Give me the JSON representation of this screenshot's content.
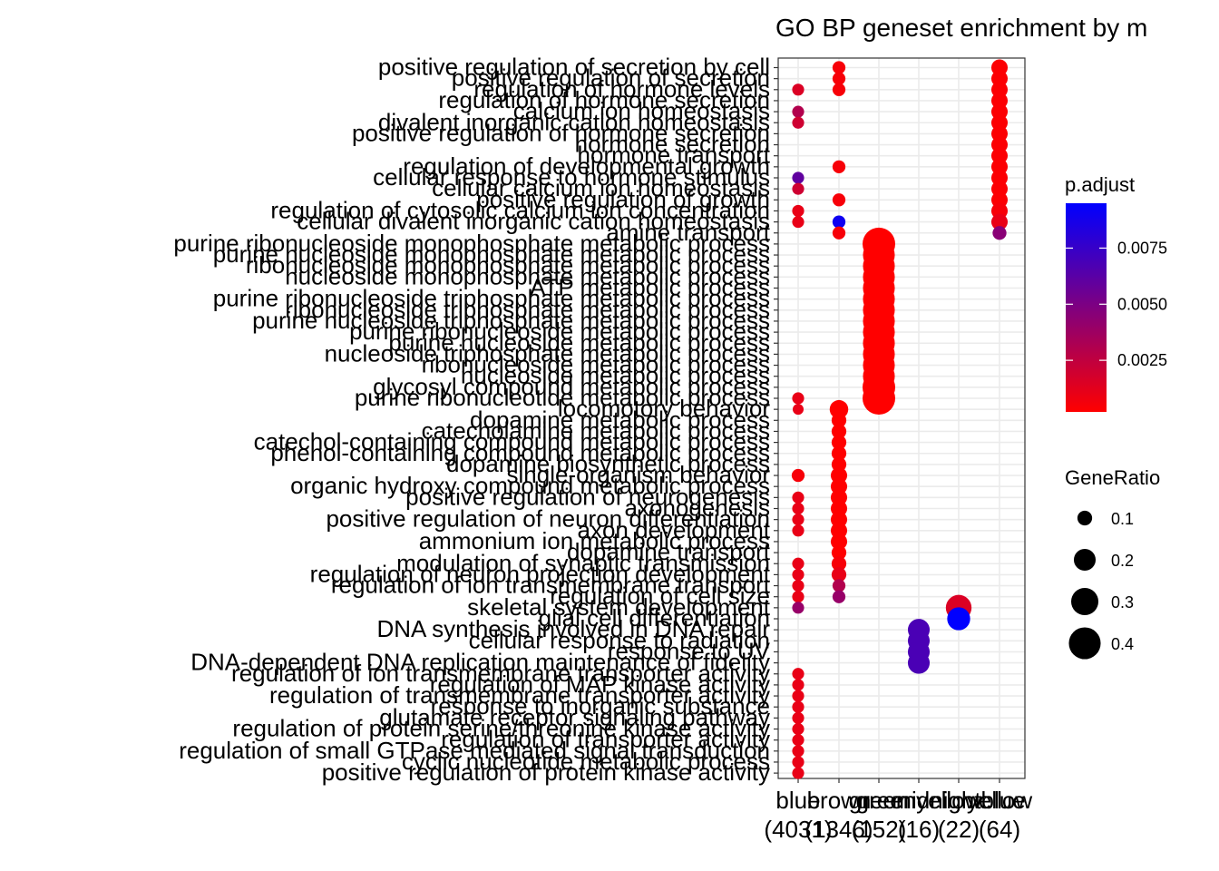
{
  "chart_data": {
    "type": "scatter",
    "title": "GO BP geneset enrichment by m",
    "xlabel": "",
    "ylabel": "",
    "grid": true,
    "categories": [
      {
        "name": "blue",
        "count": "(4031)"
      },
      {
        "name": "brown",
        "count": "(1346)"
      },
      {
        "name": "green",
        "count": "(152)"
      },
      {
        "name": "greenyellow",
        "count": "(16)"
      },
      {
        "name": "midnightblue",
        "count": "(22)"
      },
      {
        "name": "yellow",
        "count": "(64)"
      }
    ],
    "terms": [
      "positive regulation of secretion by cell",
      "positive regulation of secretion",
      "regulation of hormone levels",
      "regulation of hormone secretion",
      "calcium ion homeostasis",
      "divalent inorganic cation homeostasis",
      "positive regulation of hormone secretion",
      "hormone secretion",
      "hormone transport",
      "regulation of developmental growth",
      "cellular response to hormone stimulus",
      "cellular calcium ion homeostasis",
      "positive regulation of growth",
      "regulation of cytosolic calcium ion concentration",
      "cellular divalent inorganic cation homeostasis",
      "amine transport",
      "purine ribonucleoside monophosphate metabolic process",
      "purine nucleoside monophosphate metabolic process",
      "ribonucleoside monophosphate metabolic process",
      "nucleoside monophosphate metabolic process",
      "ATP metabolic process",
      "purine ribonucleoside triphosphate metabolic process",
      "ribonucleoside triphosphate metabolic process",
      "purine nucleoside triphosphate metabolic process",
      "purine ribonucleoside metabolic process",
      "purine nucleoside metabolic process",
      "nucleoside triphosphate metabolic process",
      "ribonucleoside metabolic process",
      "nucleoside metabolic process",
      "glycosyl compound metabolic process",
      "purine ribonucleotide metabolic process",
      "locomotory behavior",
      "dopamine metabolic process",
      "catecholamine metabolic process",
      "catechol-containing compound metabolic process",
      "phenol-containing compound metabolic process",
      "dopamine biosynthetic process",
      "single-organism behavior",
      "organic hydroxy compound metabolic process",
      "positive regulation of neurogenesis",
      "axonogenesis",
      "positive regulation of neuron differentiation",
      "axon development",
      "ammonium ion metabolic process",
      "dopamine transport",
      "modulation of synaptic transmission",
      "regulation of neuron projection development",
      "regulation of ion transmembrane transport",
      "regulation of cell size",
      "skeletal system development",
      "glial cell differentiation",
      "DNA synthesis involved in DNA repair",
      "cellular response to radiation",
      "response to UV",
      "DNA-dependent DNA replication maintenance of fidelity",
      "regulation of ion transmembrane transporter activity",
      "regulation of MAP kinase activity",
      "regulation of transmembrane transporter activity",
      "response to inorganic substance",
      "glutamate receptor signaling pathway",
      "regulation of protein serine/threonine kinase activity",
      "regulation of transporter activity",
      "regulation of small GTPase mediated signal transduction",
      "cyclic nucleotide metabolic process",
      "positive regulation of protein kinase activity"
    ],
    "points": [
      {
        "x": "blue",
        "y": 2,
        "gene_ratio": 0.07,
        "p_adjust": 0.0015
      },
      {
        "x": "blue",
        "y": 4,
        "gene_ratio": 0.07,
        "p_adjust": 0.003
      },
      {
        "x": "blue",
        "y": 5,
        "gene_ratio": 0.07,
        "p_adjust": 0.002
      },
      {
        "x": "blue",
        "y": 10,
        "gene_ratio": 0.07,
        "p_adjust": 0.006
      },
      {
        "x": "blue",
        "y": 11,
        "gene_ratio": 0.07,
        "p_adjust": 0.002
      },
      {
        "x": "blue",
        "y": 13,
        "gene_ratio": 0.07,
        "p_adjust": 0.001
      },
      {
        "x": "blue",
        "y": 14,
        "gene_ratio": 0.07,
        "p_adjust": 0.001
      },
      {
        "x": "blue",
        "y": 30,
        "gene_ratio": 0.07,
        "p_adjust": 0.001
      },
      {
        "x": "blue",
        "y": 31,
        "gene_ratio": 0.06,
        "p_adjust": 0.001
      },
      {
        "x": "blue",
        "y": 37,
        "gene_ratio": 0.08,
        "p_adjust": 0.0005
      },
      {
        "x": "blue",
        "y": 39,
        "gene_ratio": 0.07,
        "p_adjust": 0.001
      },
      {
        "x": "blue",
        "y": 40,
        "gene_ratio": 0.07,
        "p_adjust": 0.001
      },
      {
        "x": "blue",
        "y": 41,
        "gene_ratio": 0.07,
        "p_adjust": 0.001
      },
      {
        "x": "blue",
        "y": 42,
        "gene_ratio": 0.07,
        "p_adjust": 0.001
      },
      {
        "x": "blue",
        "y": 45,
        "gene_ratio": 0.07,
        "p_adjust": 0.001
      },
      {
        "x": "blue",
        "y": 46,
        "gene_ratio": 0.07,
        "p_adjust": 0.001
      },
      {
        "x": "blue",
        "y": 47,
        "gene_ratio": 0.07,
        "p_adjust": 0.001
      },
      {
        "x": "blue",
        "y": 48,
        "gene_ratio": 0.07,
        "p_adjust": 0.001
      },
      {
        "x": "blue",
        "y": 49,
        "gene_ratio": 0.07,
        "p_adjust": 0.004
      },
      {
        "x": "blue",
        "y": 55,
        "gene_ratio": 0.07,
        "p_adjust": 0.001
      },
      {
        "x": "blue",
        "y": 56,
        "gene_ratio": 0.07,
        "p_adjust": 0.001
      },
      {
        "x": "blue",
        "y": 57,
        "gene_ratio": 0.07,
        "p_adjust": 0.001
      },
      {
        "x": "blue",
        "y": 58,
        "gene_ratio": 0.07,
        "p_adjust": 0.001
      },
      {
        "x": "blue",
        "y": 59,
        "gene_ratio": 0.07,
        "p_adjust": 0.001
      },
      {
        "x": "blue",
        "y": 60,
        "gene_ratio": 0.07,
        "p_adjust": 0.001
      },
      {
        "x": "blue",
        "y": 61,
        "gene_ratio": 0.07,
        "p_adjust": 0.001
      },
      {
        "x": "blue",
        "y": 62,
        "gene_ratio": 0.07,
        "p_adjust": 0.001
      },
      {
        "x": "blue",
        "y": 63,
        "gene_ratio": 0.07,
        "p_adjust": 0.001
      },
      {
        "x": "blue",
        "y": 64,
        "gene_ratio": 0.07,
        "p_adjust": 0.001
      },
      {
        "x": "brown",
        "y": 0,
        "gene_ratio": 0.08,
        "p_adjust": 0.0005
      },
      {
        "x": "brown",
        "y": 1,
        "gene_ratio": 0.08,
        "p_adjust": 0.0005
      },
      {
        "x": "brown",
        "y": 2,
        "gene_ratio": 0.08,
        "p_adjust": 0.0005
      },
      {
        "x": "brown",
        "y": 9,
        "gene_ratio": 0.08,
        "p_adjust": 0.0005
      },
      {
        "x": "brown",
        "y": 12,
        "gene_ratio": 0.08,
        "p_adjust": 0.0005
      },
      {
        "x": "brown",
        "y": 14,
        "gene_ratio": 0.08,
        "p_adjust": 0.009
      },
      {
        "x": "brown",
        "y": 15,
        "gene_ratio": 0.08,
        "p_adjust": 0.0005
      },
      {
        "x": "brown",
        "y": 31,
        "gene_ratio": 0.15,
        "p_adjust": 0.0002
      },
      {
        "x": "brown",
        "y": 32,
        "gene_ratio": 0.1,
        "p_adjust": 0.0002
      },
      {
        "x": "brown",
        "y": 33,
        "gene_ratio": 0.1,
        "p_adjust": 0.0002
      },
      {
        "x": "brown",
        "y": 34,
        "gene_ratio": 0.1,
        "p_adjust": 0.0002
      },
      {
        "x": "brown",
        "y": 35,
        "gene_ratio": 0.1,
        "p_adjust": 0.0002
      },
      {
        "x": "brown",
        "y": 36,
        "gene_ratio": 0.1,
        "p_adjust": 0.0002
      },
      {
        "x": "brown",
        "y": 37,
        "gene_ratio": 0.12,
        "p_adjust": 0.0002
      },
      {
        "x": "brown",
        "y": 38,
        "gene_ratio": 0.12,
        "p_adjust": 0.0002
      },
      {
        "x": "brown",
        "y": 39,
        "gene_ratio": 0.12,
        "p_adjust": 0.0002
      },
      {
        "x": "brown",
        "y": 40,
        "gene_ratio": 0.12,
        "p_adjust": 0.0002
      },
      {
        "x": "brown",
        "y": 41,
        "gene_ratio": 0.12,
        "p_adjust": 0.0002
      },
      {
        "x": "brown",
        "y": 42,
        "gene_ratio": 0.12,
        "p_adjust": 0.0002
      },
      {
        "x": "brown",
        "y": 43,
        "gene_ratio": 0.12,
        "p_adjust": 0.0002
      },
      {
        "x": "brown",
        "y": 44,
        "gene_ratio": 0.1,
        "p_adjust": 0.0002
      },
      {
        "x": "brown",
        "y": 45,
        "gene_ratio": 0.1,
        "p_adjust": 0.0005
      },
      {
        "x": "brown",
        "y": 46,
        "gene_ratio": 0.1,
        "p_adjust": 0.001
      },
      {
        "x": "brown",
        "y": 47,
        "gene_ratio": 0.08,
        "p_adjust": 0.003
      },
      {
        "x": "brown",
        "y": 48,
        "gene_ratio": 0.08,
        "p_adjust": 0.004
      },
      {
        "x": "green",
        "y": 16,
        "gene_ratio": 0.42,
        "p_adjust": 0.0002
      },
      {
        "x": "green",
        "y": 17,
        "gene_ratio": 0.4,
        "p_adjust": 0.0002
      },
      {
        "x": "green",
        "y": 18,
        "gene_ratio": 0.4,
        "p_adjust": 0.0002
      },
      {
        "x": "green",
        "y": 19,
        "gene_ratio": 0.4,
        "p_adjust": 0.0002
      },
      {
        "x": "green",
        "y": 20,
        "gene_ratio": 0.4,
        "p_adjust": 0.0002
      },
      {
        "x": "green",
        "y": 21,
        "gene_ratio": 0.4,
        "p_adjust": 0.0002
      },
      {
        "x": "green",
        "y": 22,
        "gene_ratio": 0.4,
        "p_adjust": 0.0002
      },
      {
        "x": "green",
        "y": 23,
        "gene_ratio": 0.4,
        "p_adjust": 0.0002
      },
      {
        "x": "green",
        "y": 24,
        "gene_ratio": 0.4,
        "p_adjust": 0.0002
      },
      {
        "x": "green",
        "y": 25,
        "gene_ratio": 0.4,
        "p_adjust": 0.0002
      },
      {
        "x": "green",
        "y": 26,
        "gene_ratio": 0.4,
        "p_adjust": 0.0002
      },
      {
        "x": "green",
        "y": 27,
        "gene_ratio": 0.4,
        "p_adjust": 0.0002
      },
      {
        "x": "green",
        "y": 28,
        "gene_ratio": 0.4,
        "p_adjust": 0.0002
      },
      {
        "x": "green",
        "y": 29,
        "gene_ratio": 0.42,
        "p_adjust": 0.0002
      },
      {
        "x": "green",
        "y": 30,
        "gene_ratio": 0.42,
        "p_adjust": 0.0002
      },
      {
        "x": "greenyellow",
        "y": 51,
        "gene_ratio": 0.2,
        "p_adjust": 0.0068
      },
      {
        "x": "greenyellow",
        "y": 52,
        "gene_ratio": 0.2,
        "p_adjust": 0.0068
      },
      {
        "x": "greenyellow",
        "y": 53,
        "gene_ratio": 0.2,
        "p_adjust": 0.0068
      },
      {
        "x": "greenyellow",
        "y": 54,
        "gene_ratio": 0.2,
        "p_adjust": 0.0068
      },
      {
        "x": "midnightblue",
        "y": 49,
        "gene_ratio": 0.27,
        "p_adjust": 0.0015
      },
      {
        "x": "midnightblue",
        "y": 50,
        "gene_ratio": 0.22,
        "p_adjust": 0.0095
      },
      {
        "x": "yellow",
        "y": 0,
        "gene_ratio": 0.12,
        "p_adjust": 0.0003
      },
      {
        "x": "yellow",
        "y": 1,
        "gene_ratio": 0.12,
        "p_adjust": 0.0003
      },
      {
        "x": "yellow",
        "y": 2,
        "gene_ratio": 0.12,
        "p_adjust": 0.0003
      },
      {
        "x": "yellow",
        "y": 3,
        "gene_ratio": 0.12,
        "p_adjust": 0.0003
      },
      {
        "x": "yellow",
        "y": 4,
        "gene_ratio": 0.12,
        "p_adjust": 0.0003
      },
      {
        "x": "yellow",
        "y": 5,
        "gene_ratio": 0.12,
        "p_adjust": 0.0003
      },
      {
        "x": "yellow",
        "y": 6,
        "gene_ratio": 0.12,
        "p_adjust": 0.0003
      },
      {
        "x": "yellow",
        "y": 7,
        "gene_ratio": 0.12,
        "p_adjust": 0.0003
      },
      {
        "x": "yellow",
        "y": 8,
        "gene_ratio": 0.12,
        "p_adjust": 0.0003
      },
      {
        "x": "yellow",
        "y": 9,
        "gene_ratio": 0.12,
        "p_adjust": 0.0003
      },
      {
        "x": "yellow",
        "y": 10,
        "gene_ratio": 0.12,
        "p_adjust": 0.0003
      },
      {
        "x": "yellow",
        "y": 11,
        "gene_ratio": 0.12,
        "p_adjust": 0.0003
      },
      {
        "x": "yellow",
        "y": 12,
        "gene_ratio": 0.12,
        "p_adjust": 0.0003
      },
      {
        "x": "yellow",
        "y": 13,
        "gene_ratio": 0.12,
        "p_adjust": 0.0005
      },
      {
        "x": "yellow",
        "y": 14,
        "gene_ratio": 0.12,
        "p_adjust": 0.001
      },
      {
        "x": "yellow",
        "y": 15,
        "gene_ratio": 0.09,
        "p_adjust": 0.0045
      }
    ],
    "color_legend": {
      "title": "p.adjust",
      "ticks": [
        0.0025,
        0.005,
        0.0075
      ],
      "tick_labels": [
        "0.0025",
        "0.0050",
        "0.0075"
      ],
      "range": [
        0.0002,
        0.0095
      ],
      "low_color": "#ff0000",
      "high_color": "#0000ff"
    },
    "size_legend": {
      "title": "GeneRatio",
      "ticks": [
        0.1,
        0.2,
        0.3,
        0.4
      ],
      "tick_labels": [
        "0.1",
        "0.2",
        "0.3",
        "0.4"
      ]
    },
    "legend_placement": "right"
  }
}
